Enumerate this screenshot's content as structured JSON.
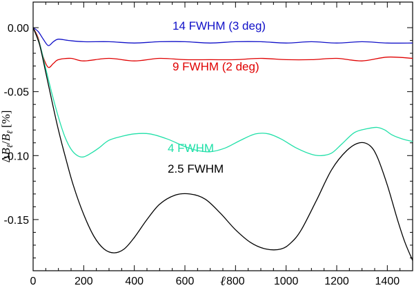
{
  "chart_data": {
    "type": "line",
    "title": "",
    "xlabel": "ℓ",
    "ylabel": {
      "delta": "Δ",
      "b": "B",
      "ell": "ℓ",
      "slash": "/",
      "unit": "[%]"
    },
    "xlim": [
      0,
      1500
    ],
    "ylim": [
      -0.19,
      0.02
    ],
    "xticks": [
      0,
      200,
      400,
      600,
      800,
      1000,
      1200,
      1400
    ],
    "xtick_labels": [
      "0",
      "200",
      "400",
      "600",
      "800",
      "1000",
      "1200",
      "1400"
    ],
    "yticks": [
      0.0,
      -0.05,
      -0.1,
      -0.15
    ],
    "ytick_labels": [
      "0.00",
      "-0.05",
      "-0.10",
      "-0.15"
    ],
    "series": [
      {
        "name": "14 FWHM (3 deg)",
        "color": "#1010c8",
        "x": [
          0,
          20,
          40,
          60,
          80,
          100,
          140,
          200,
          300,
          400,
          500,
          600,
          700,
          800,
          900,
          1000,
          1100,
          1200,
          1300,
          1400,
          1500
        ],
        "y": [
          0,
          -0.003,
          -0.009,
          -0.014,
          -0.011,
          -0.009,
          -0.01,
          -0.011,
          -0.011,
          -0.012,
          -0.011,
          -0.011,
          -0.012,
          -0.011,
          -0.011,
          -0.012,
          -0.011,
          -0.012,
          -0.011,
          -0.012,
          -0.012
        ]
      },
      {
        "name": "9 FWHM (2 deg)",
        "color": "#e00000",
        "x": [
          0,
          20,
          40,
          60,
          80,
          100,
          150,
          200,
          300,
          400,
          500,
          600,
          700,
          800,
          900,
          1000,
          1100,
          1200,
          1300,
          1400,
          1500
        ],
        "y": [
          0,
          -0.008,
          -0.023,
          -0.031,
          -0.028,
          -0.025,
          -0.024,
          -0.026,
          -0.024,
          -0.026,
          -0.024,
          -0.025,
          -0.025,
          -0.025,
          -0.024,
          -0.025,
          -0.025,
          -0.024,
          -0.026,
          -0.023,
          -0.024
        ]
      },
      {
        "name": "4 FWHM",
        "color": "#20e0a8",
        "x": [
          0,
          25,
          50,
          75,
          100,
          125,
          150,
          175,
          200,
          230,
          260,
          300,
          350,
          400,
          460,
          530,
          600,
          650,
          700,
          760,
          820,
          880,
          930,
          980,
          1040,
          1100,
          1140,
          1180,
          1220,
          1270,
          1320,
          1360,
          1390,
          1420,
          1460,
          1500
        ],
        "y": [
          0,
          -0.012,
          -0.032,
          -0.052,
          -0.07,
          -0.085,
          -0.095,
          -0.1,
          -0.101,
          -0.098,
          -0.094,
          -0.088,
          -0.085,
          -0.083,
          -0.083,
          -0.087,
          -0.093,
          -0.096,
          -0.097,
          -0.094,
          -0.088,
          -0.083,
          -0.083,
          -0.087,
          -0.094,
          -0.099,
          -0.1,
          -0.098,
          -0.091,
          -0.082,
          -0.079,
          -0.078,
          -0.08,
          -0.084,
          -0.087,
          -0.089
        ]
      },
      {
        "name": "2.5 FWHM",
        "color": "#000000",
        "x": [
          0,
          25,
          50,
          75,
          100,
          130,
          160,
          200,
          240,
          280,
          320,
          360,
          400,
          450,
          500,
          560,
          620,
          680,
          740,
          800,
          860,
          920,
          980,
          1020,
          1060,
          1120,
          1180,
          1240,
          1290,
          1330,
          1360,
          1400,
          1440,
          1470,
          1500
        ],
        "y": [
          0,
          -0.013,
          -0.035,
          -0.058,
          -0.08,
          -0.103,
          -0.124,
          -0.146,
          -0.163,
          -0.173,
          -0.176,
          -0.173,
          -0.164,
          -0.15,
          -0.138,
          -0.131,
          -0.13,
          -0.134,
          -0.145,
          -0.158,
          -0.168,
          -0.173,
          -0.173,
          -0.168,
          -0.158,
          -0.135,
          -0.111,
          -0.096,
          -0.09,
          -0.092,
          -0.101,
          -0.123,
          -0.15,
          -0.168,
          -0.182
        ]
      }
    ],
    "annotations": [
      "14 FWHM (3 deg)",
      "9 FWHM (2 deg)",
      "4 FWHM",
      "2.5 FWHM"
    ]
  }
}
